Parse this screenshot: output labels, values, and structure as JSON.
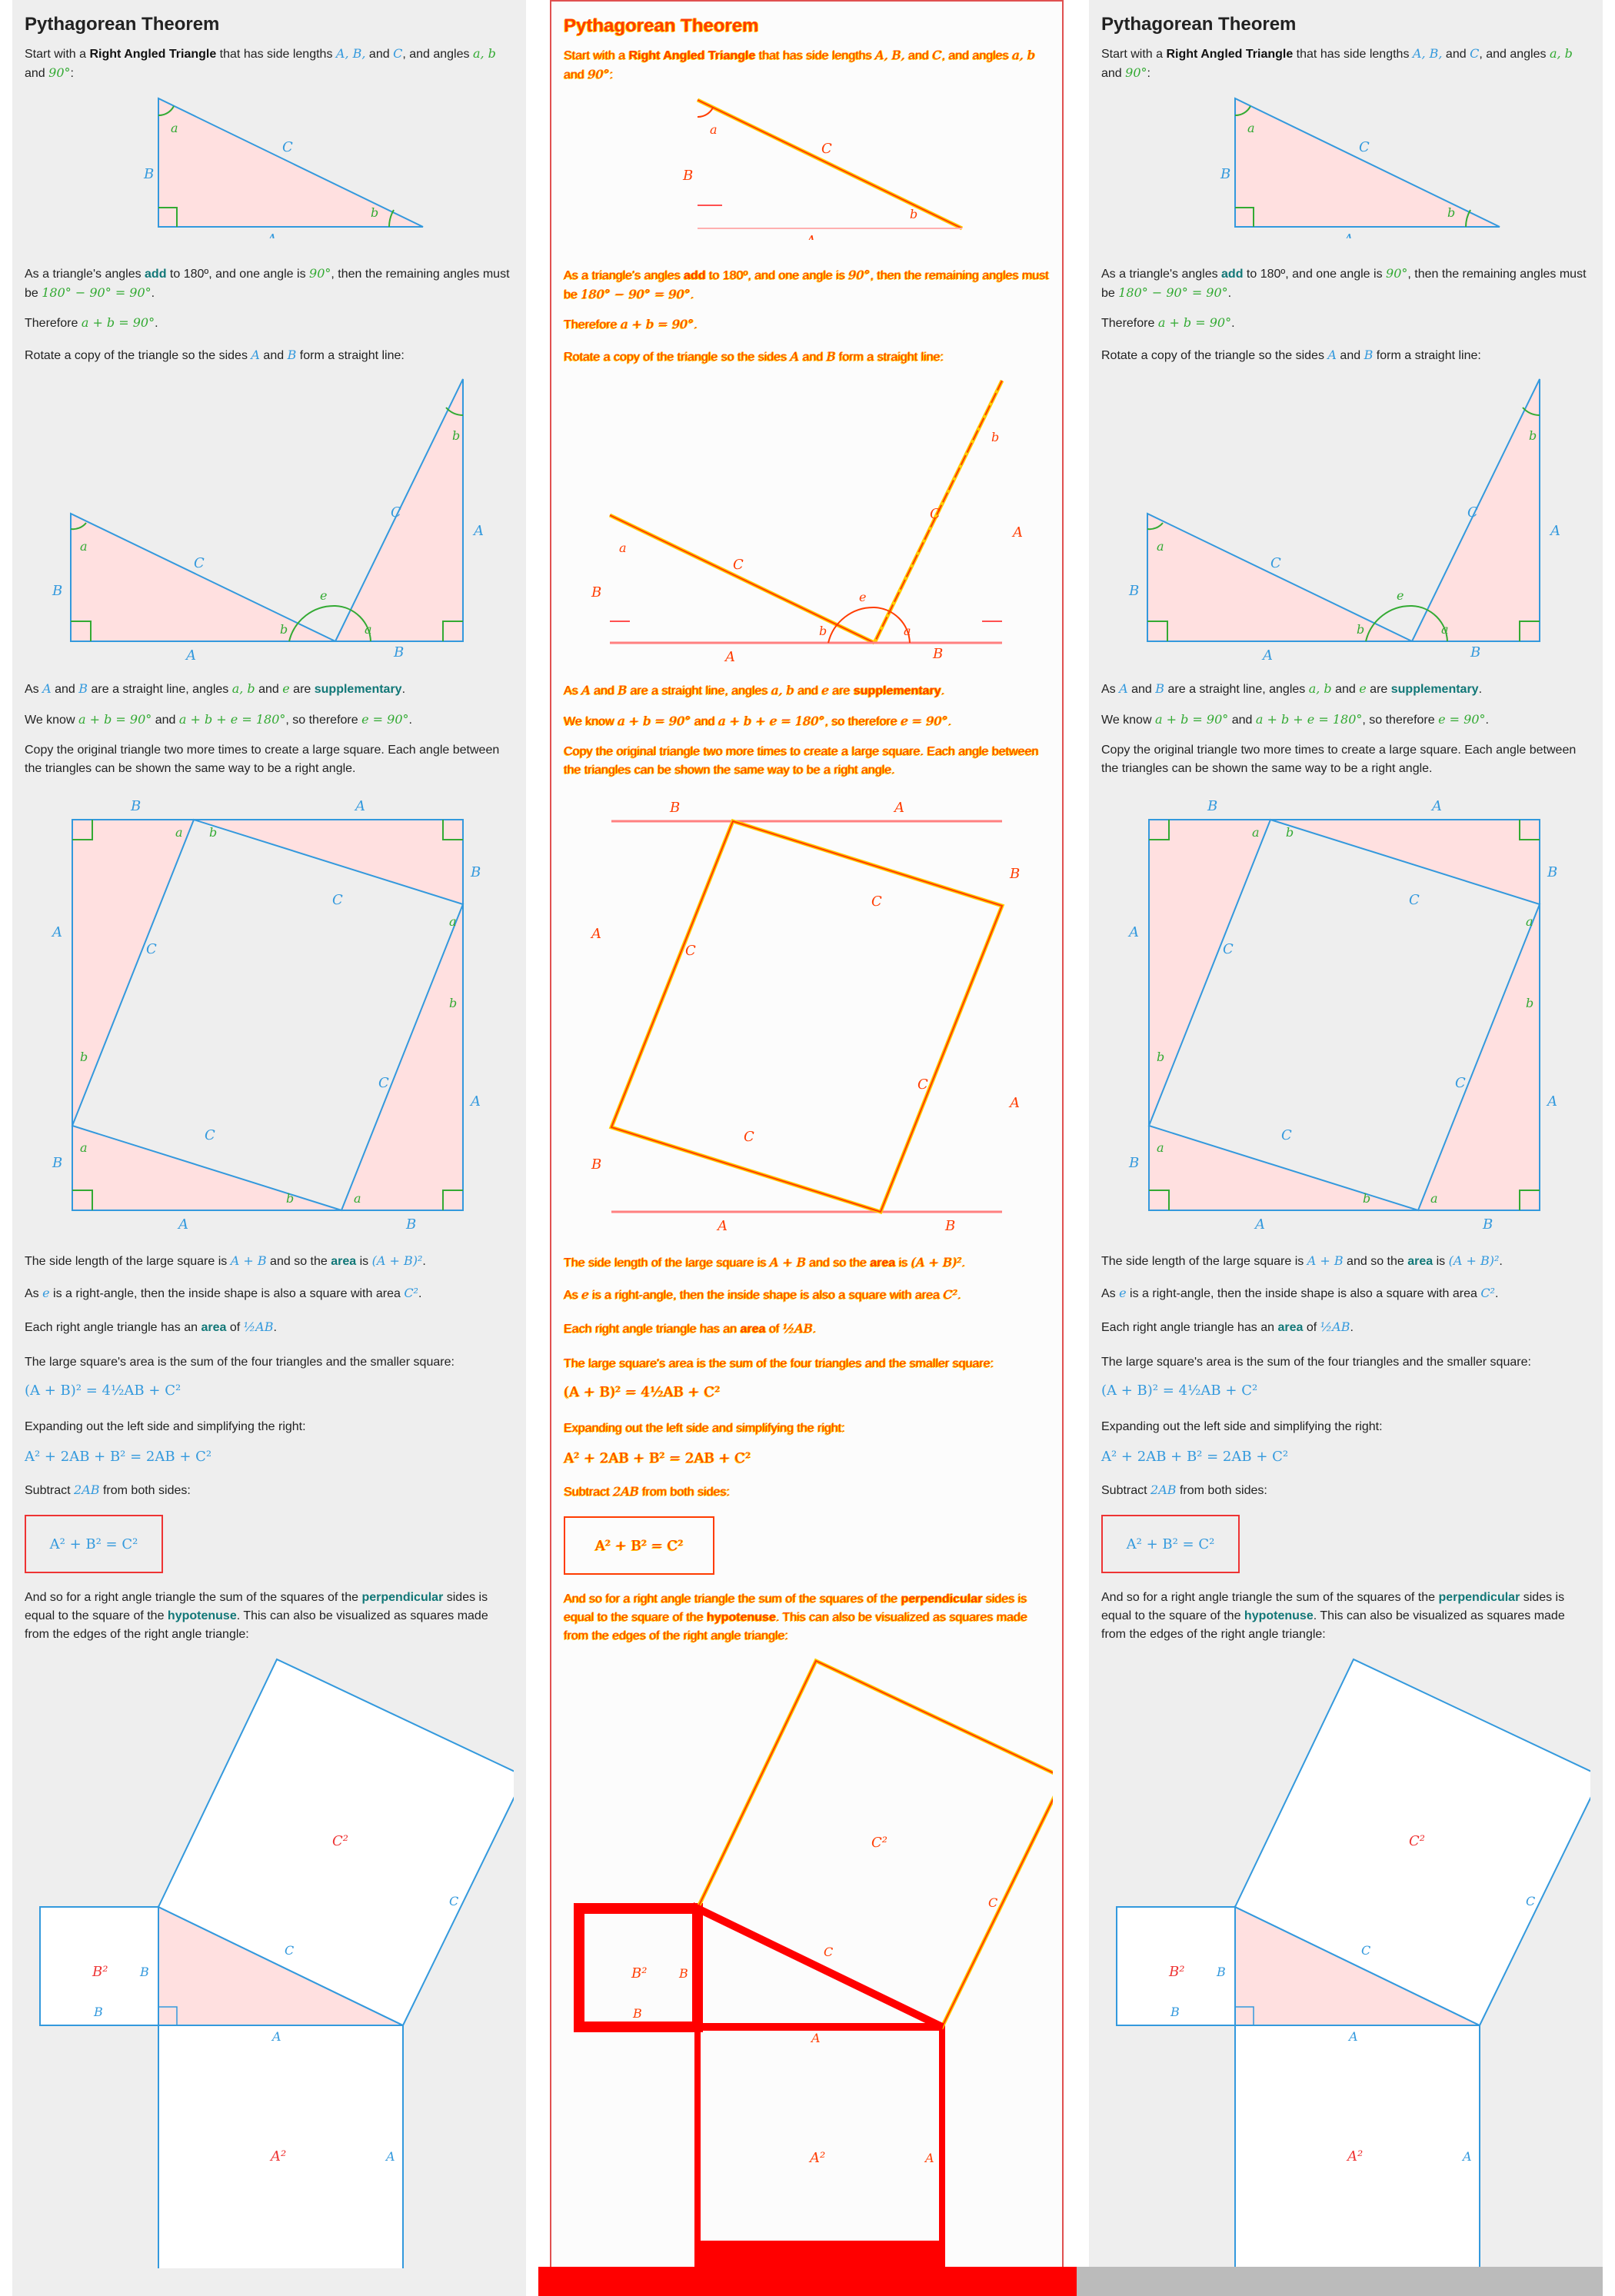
{
  "doc": {
    "title": "Pythagorean Theorem",
    "intro_a": "Start with a ",
    "intro_bold": "Right Angled Triangle",
    "intro_b": " that has side lengths ",
    "intro_sides": "A, B,",
    "intro_c": " and ",
    "intro_C": "C",
    "intro_d": ", and angles ",
    "intro_ab": "a, b",
    "intro_e": " and ",
    "intro_90": "90°",
    "intro_f": ":",
    "p_angles_a": "As a triangle's angles ",
    "p_angles_add": "add",
    "p_angles_b": " to 180º, and one angle is ",
    "p_angles_90": "90°",
    "p_angles_c": ", then the remaining angles must be ",
    "p_angles_eq": "180° − 90° = 90°",
    "p_angles_d": ".",
    "p_therefore": "Therefore ",
    "p_therefore_eq": "a + b = 90°",
    "p_rotate_a": "Rotate a copy of the triangle so the sides ",
    "p_rotate_A": "A",
    "p_rotate_b": " and ",
    "p_rotate_B": "B",
    "p_rotate_c": " form a straight line:",
    "p_supp_a": "As ",
    "p_supp_A": "A",
    "p_supp_b": " and ",
    "p_supp_B": "B",
    "p_supp_c": " are a straight line, angles ",
    "p_supp_ab": "a, b",
    "p_supp_d": " and ",
    "p_supp_e": "e",
    "p_supp_f": " are ",
    "p_supp_word": "supplementary",
    "p_supp_g": ".",
    "p_know_a": "We know ",
    "p_know_eq1": "a + b = 90°",
    "p_know_b": " and ",
    "p_know_eq2": "a + b + e = 180°",
    "p_know_c": ", so therefore ",
    "p_know_eq3": "e = 90°",
    "p_know_d": ".",
    "p_copy": "Copy the original triangle two more times to create a large square. Each angle between the triangles can be shown the same way to be a right angle.",
    "p_side_a": "The side length of the large square is ",
    "p_side_AB": "A + B",
    "p_side_b": " and so the ",
    "p_side_area": "area",
    "p_side_c": " is ",
    "p_side_eq": "(A + B)²",
    "p_side_d": ".",
    "p_inner_a": "As ",
    "p_inner_e": "e",
    "p_inner_b": " is a right-angle, then the inside shape is also a square with area ",
    "p_inner_C2": "C²",
    "p_inner_c": ".",
    "p_tri_a": "Each right angle triangle has an ",
    "p_tri_area": "area",
    "p_tri_b": " of ",
    "p_tri_eq": "½AB",
    "p_tri_c": ".",
    "p_sum": "The large square's area is the sum of the four triangles and the smaller square:",
    "eq1": "(A + B)² = 4½AB + C²",
    "p_expand": "Expanding out the left side and simplifying the right:",
    "eq2": "A² + 2AB + B² = 2AB + C²",
    "p_sub_a": "Subtract ",
    "p_sub_2AB": "2AB",
    "p_sub_b": " from both sides:",
    "eq_final": "A² + B² = C²",
    "p_final_a": "And so for a right angle triangle the sum of the squares of the ",
    "p_final_perp": "perpendicular",
    "p_final_b": " sides is equal to the square of the ",
    "p_final_hyp": "hypotenuse",
    "p_final_c": ". This can also be visualized as squares made from the edges of the right angle triangle:"
  },
  "labels": {
    "A": "A",
    "B": "B",
    "C": "C",
    "a": "a",
    "b": "b",
    "e": "e",
    "A2": "A²",
    "B2": "B²",
    "C2": "C²"
  },
  "colors": {
    "side": "#3399dd",
    "angle": "#33aa33",
    "fill": "#ffe0e0",
    "square": "#3399dd",
    "sq_label": "#ee3333",
    "mid_line": "#ff3c00",
    "mid_glow": "#ffcc00",
    "bar_red": "#ff0000",
    "bar_gray": "#bbbbbb"
  }
}
